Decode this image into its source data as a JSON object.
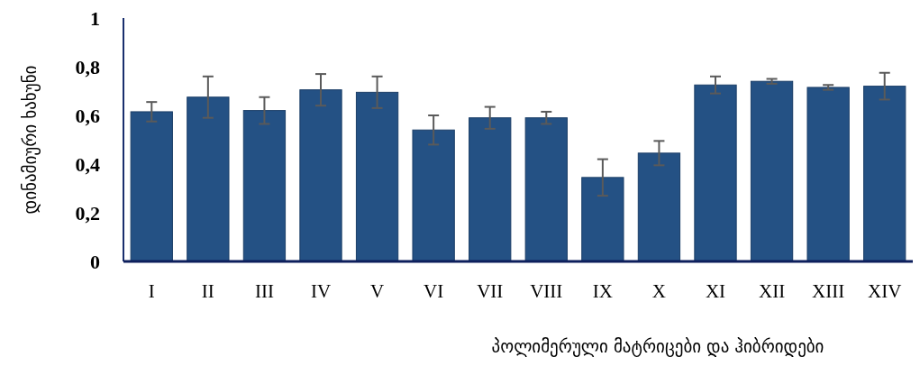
{
  "chart_data": {
    "type": "bar",
    "xlabel": "პოლიმერული მატრიცები და ჰიბრიდები",
    "ylabel": "დინამიური ხახუნი",
    "categories": [
      "I",
      "II",
      "III",
      "IV",
      "V",
      "VI",
      "VII",
      "VIII",
      "IX",
      "X",
      "XI",
      "XII",
      "XIII",
      "XIV"
    ],
    "values": [
      0.615,
      0.675,
      0.62,
      0.705,
      0.695,
      0.54,
      0.59,
      0.59,
      0.345,
      0.445,
      0.725,
      0.74,
      0.715,
      0.72
    ],
    "errors": [
      0.04,
      0.085,
      0.055,
      0.065,
      0.065,
      0.06,
      0.045,
      0.025,
      0.075,
      0.05,
      0.035,
      0.01,
      0.01,
      0.055
    ],
    "color": "#245184",
    "ylim": [
      0,
      1
    ],
    "yticks": [
      0,
      {
        "value": 0.2,
        "label": "0,2"
      },
      {
        "value": 0.4,
        "label": "0,4"
      },
      {
        "value": 0.6,
        "label": "0,6"
      },
      {
        "value": 0.8,
        "label": "0,8"
      },
      1
    ],
    "grid": false
  }
}
